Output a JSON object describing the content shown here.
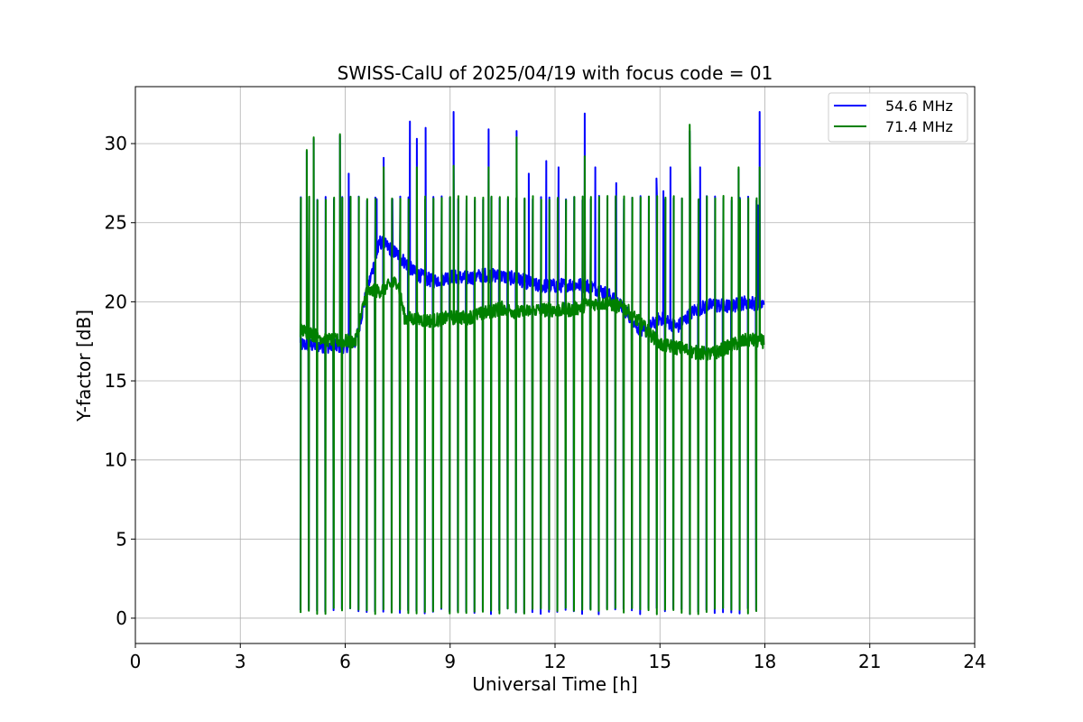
{
  "chart_data": {
    "type": "line",
    "title": "SWISS-CalU of 2025/04/19 with focus code = 01",
    "xlabel": "Universal Time [h]",
    "ylabel": "Y-factor [dB]",
    "xlim": [
      0,
      24
    ],
    "ylim": [
      -1.6,
      33.6
    ],
    "xticks": [
      0,
      3,
      6,
      9,
      12,
      15,
      18,
      21,
      24
    ],
    "yticks": [
      0,
      5,
      10,
      15,
      20,
      25,
      30
    ],
    "grid": true,
    "legend_position": "top-right",
    "series": [
      {
        "name": "54.6 MHz",
        "color": "#0000ff",
        "baseline": [
          [
            4.75,
            17.3
          ],
          [
            5.5,
            17.2
          ],
          [
            6.0,
            17.2
          ],
          [
            6.3,
            17.5
          ],
          [
            6.6,
            20.5
          ],
          [
            7.0,
            23.8
          ],
          [
            7.5,
            23.0
          ],
          [
            8.0,
            21.8
          ],
          [
            8.5,
            21.3
          ],
          [
            9.0,
            21.6
          ],
          [
            9.5,
            21.5
          ],
          [
            10.0,
            21.7
          ],
          [
            10.5,
            21.6
          ],
          [
            11.0,
            21.4
          ],
          [
            11.5,
            21.0
          ],
          [
            12.0,
            21.0
          ],
          [
            12.5,
            21.1
          ],
          [
            13.0,
            21.0
          ],
          [
            13.5,
            20.5
          ],
          [
            14.0,
            19.5
          ],
          [
            14.5,
            18.0
          ],
          [
            15.0,
            19.0
          ],
          [
            15.5,
            18.4
          ],
          [
            16.0,
            19.5
          ],
          [
            16.5,
            19.8
          ],
          [
            17.0,
            19.7
          ],
          [
            17.5,
            20.0
          ],
          [
            18.0,
            19.8
          ]
        ],
        "spikes": [
          [
            4.9,
            29.5
          ],
          [
            5.1,
            30.3
          ],
          [
            5.85,
            30.5
          ],
          [
            6.1,
            28.1
          ],
          [
            6.9,
            26.5
          ],
          [
            7.1,
            29.1
          ],
          [
            7.35,
            26.5
          ],
          [
            7.85,
            31.4
          ],
          [
            8.05,
            30.3
          ],
          [
            8.3,
            31.0
          ],
          [
            9.1,
            32.0
          ],
          [
            10.1,
            30.9
          ],
          [
            10.9,
            30.8
          ],
          [
            11.25,
            28.1
          ],
          [
            11.75,
            28.9
          ],
          [
            12.1,
            28.5
          ],
          [
            12.85,
            31.9
          ],
          [
            13.15,
            28.5
          ],
          [
            13.75,
            27.5
          ],
          [
            14.9,
            27.8
          ],
          [
            15.1,
            27.0
          ],
          [
            15.3,
            28.5
          ],
          [
            15.85,
            30.8
          ],
          [
            16.15,
            28.5
          ],
          [
            17.25,
            28.4
          ],
          [
            17.8,
            26.1
          ],
          [
            17.85,
            32.0
          ]
        ]
      },
      {
        "name": "71.4 MHz",
        "color": "#008000",
        "baseline": [
          [
            4.75,
            18.2
          ],
          [
            5.5,
            17.6
          ],
          [
            6.0,
            17.5
          ],
          [
            6.3,
            17.5
          ],
          [
            6.6,
            20.6
          ],
          [
            7.0,
            20.7
          ],
          [
            7.5,
            21.3
          ],
          [
            7.7,
            19.0
          ],
          [
            8.0,
            18.9
          ],
          [
            8.5,
            18.8
          ],
          [
            9.0,
            19.0
          ],
          [
            9.5,
            19.0
          ],
          [
            10.0,
            19.3
          ],
          [
            10.5,
            19.6
          ],
          [
            11.0,
            19.3
          ],
          [
            11.5,
            19.5
          ],
          [
            12.0,
            19.5
          ],
          [
            12.5,
            19.5
          ],
          [
            13.0,
            19.9
          ],
          [
            13.5,
            19.9
          ],
          [
            14.0,
            19.6
          ],
          [
            14.5,
            18.5
          ],
          [
            15.0,
            17.3
          ],
          [
            15.5,
            17.1
          ],
          [
            16.0,
            16.8
          ],
          [
            16.5,
            16.7
          ],
          [
            17.0,
            17.2
          ],
          [
            17.5,
            17.6
          ],
          [
            18.0,
            17.5
          ]
        ],
        "spikes": [
          [
            4.9,
            29.6
          ],
          [
            5.1,
            30.4
          ],
          [
            5.85,
            30.6
          ],
          [
            7.1,
            28.5
          ],
          [
            8.05,
            28.5
          ],
          [
            9.1,
            28.6
          ],
          [
            10.1,
            28.5
          ],
          [
            10.9,
            30.4
          ],
          [
            12.85,
            29.2
          ],
          [
            15.85,
            31.2
          ],
          [
            17.25,
            28.5
          ],
          [
            17.85,
            28.5
          ]
        ]
      }
    ],
    "calibration_dips": {
      "start_h": 4.72,
      "end_h": 17.75,
      "count": 56,
      "low_db": 0.25,
      "high_db": 26.7
    }
  }
}
